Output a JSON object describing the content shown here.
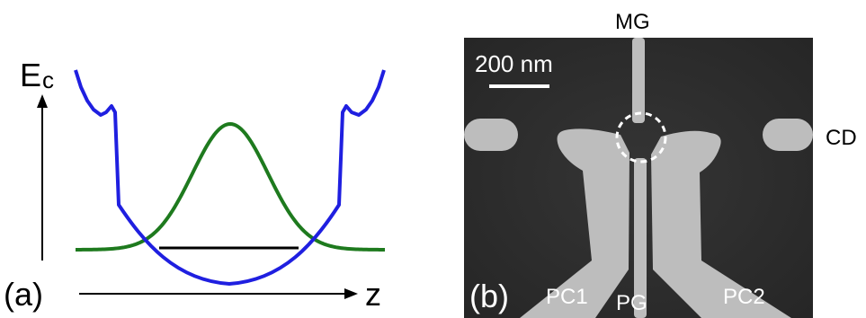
{
  "panel_a": {
    "y_axis_label": "E",
    "y_axis_subscript": "c",
    "x_axis_label": "z",
    "panel_label": "(a)",
    "colors": {
      "potential": "#1f1fe0",
      "wavefunction": "#1e7a1e",
      "energy_level": "#000000"
    }
  },
  "panel_b": {
    "panel_label": "(b)",
    "scale_bar_label": "200 nm",
    "gate_labels": {
      "mg": "MG",
      "cd": "CD",
      "pc1": "PC1",
      "pg": "PG",
      "pc2": "PC2"
    },
    "colors": {
      "background": "#2e2e2e",
      "gates": "#bdbdbd",
      "dot_marker": "#ffffff"
    }
  }
}
